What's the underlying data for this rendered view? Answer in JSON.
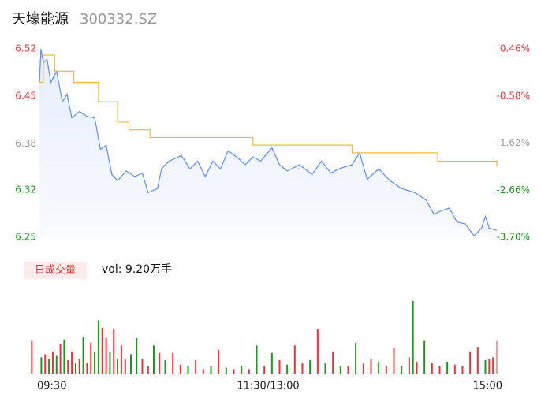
{
  "header": {
    "name": "天壕能源",
    "code": "300332.SZ"
  },
  "chart_data": {
    "type": "intraday",
    "xlim": [
      0,
      240
    ],
    "xticks": [
      {
        "value": 0,
        "label": "09:30"
      },
      {
        "value": 120,
        "label": "11:30/13:00"
      },
      {
        "value": 240,
        "label": "15:00"
      }
    ],
    "ylim": [
      6.25,
      6.52
    ],
    "yticks": [
      {
        "value": 6.25,
        "label": "6.25"
      },
      {
        "value": 6.318,
        "label": "6.32"
      },
      {
        "value": 6.384,
        "label": "6.38"
      },
      {
        "value": 6.452,
        "label": "6.45"
      },
      {
        "value": 6.52,
        "label": "6.52"
      }
    ],
    "y2lim": [
      -3.7,
      0.46
    ],
    "y2ticks": [
      {
        "value": -3.7,
        "label": "-3.70%"
      },
      {
        "value": -2.66,
        "label": "-2.66%"
      },
      {
        "value": -1.62,
        "label": "-1.62%"
      },
      {
        "value": -0.58,
        "label": "-0.58%"
      },
      {
        "value": 0.46,
        "label": "0.46%"
      }
    ],
    "up_color": "#e8323c",
    "down_color": "#1a9a1a",
    "flat_color": "#999999",
    "series": [
      {
        "name": "price",
        "color": "#5b8ff9",
        "x": [
          0,
          0.8,
          2,
          4,
          6,
          9,
          12,
          14.5,
          17,
          21,
          25,
          29,
          32,
          35,
          38,
          41,
          45.5,
          50,
          54,
          57,
          62,
          64,
          68,
          74.5,
          79,
          83,
          87,
          91,
          95,
          99,
          103.5,
          108,
          112,
          116,
          122,
          126,
          130,
          136.5,
          143,
          148,
          153,
          157,
          164,
          168,
          172,
          178,
          184,
          190,
          197,
          203,
          207,
          211,
          215,
          219,
          223.5,
          228,
          232,
          234,
          236,
          240
        ],
        "values": [
          6.472,
          6.52,
          6.5,
          6.505,
          6.472,
          6.488,
          6.444,
          6.455,
          6.421,
          6.43,
          6.423,
          6.421,
          6.376,
          6.382,
          6.34,
          6.331,
          6.345,
          6.337,
          6.342,
          6.314,
          6.32,
          6.348,
          6.359,
          6.367,
          6.348,
          6.359,
          6.337,
          6.359,
          6.348,
          6.374,
          6.365,
          6.354,
          6.365,
          6.359,
          6.378,
          6.354,
          6.345,
          6.354,
          6.34,
          6.359,
          6.342,
          6.348,
          6.354,
          6.371,
          6.333,
          6.348,
          6.331,
          6.32,
          6.314,
          6.303,
          6.283,
          6.288,
          6.292,
          6.272,
          6.269,
          6.252,
          6.263,
          6.28,
          6.263,
          6.26
        ]
      },
      {
        "name": "average",
        "color": "#f5b731",
        "x": [
          0,
          2,
          8,
          18,
          31,
          41,
          47,
          58,
          112,
          164,
          209,
          240
        ],
        "values": [
          6.472,
          6.511,
          6.488,
          6.472,
          6.444,
          6.415,
          6.404,
          6.393,
          6.382,
          6.371,
          6.359,
          6.351
        ]
      }
    ],
    "volume": {
      "legend": "日成交量",
      "label": "vol: 9.20万手",
      "ylim": [
        0,
        100
      ],
      "bars": [
        {
          "x": -4,
          "value": 44,
          "color": "#e8323c"
        },
        {
          "x": 1,
          "value": 22,
          "color": "#1a9a1a"
        },
        {
          "x": 3,
          "value": 26,
          "color": "#e8323c"
        },
        {
          "x": 5,
          "value": 20,
          "color": "#1a9a1a"
        },
        {
          "x": 7,
          "value": 30,
          "color": "#e8323c"
        },
        {
          "x": 9,
          "value": 24,
          "color": "#1a9a1a"
        },
        {
          "x": 11,
          "value": 40,
          "color": "#e8323c"
        },
        {
          "x": 13,
          "value": 46,
          "color": "#1a9a1a"
        },
        {
          "x": 15,
          "value": 18,
          "color": "#e8323c"
        },
        {
          "x": 17,
          "value": 30,
          "color": "#e8323c"
        },
        {
          "x": 19,
          "value": 14,
          "color": "#1a9a1a"
        },
        {
          "x": 21,
          "value": 20,
          "color": "#e8323c"
        },
        {
          "x": 23,
          "value": 50,
          "color": "#1a9a1a"
        },
        {
          "x": 25,
          "value": 14,
          "color": "#e8323c"
        },
        {
          "x": 27,
          "value": 42,
          "color": "#e8323c"
        },
        {
          "x": 29,
          "value": 30,
          "color": "#1a9a1a"
        },
        {
          "x": 31,
          "value": 72,
          "color": "#1a9a1a"
        },
        {
          "x": 33,
          "value": 62,
          "color": "#e8323c"
        },
        {
          "x": 35,
          "value": 48,
          "color": "#e8323c"
        },
        {
          "x": 37,
          "value": 30,
          "color": "#1a9a1a"
        },
        {
          "x": 39,
          "value": 60,
          "color": "#e8323c"
        },
        {
          "x": 41,
          "value": 20,
          "color": "#1a9a1a"
        },
        {
          "x": 43,
          "value": 38,
          "color": "#e8323c"
        },
        {
          "x": 45,
          "value": 20,
          "color": "#e8323c"
        },
        {
          "x": 48,
          "value": 26,
          "color": "#1a9a1a"
        },
        {
          "x": 51,
          "value": 48,
          "color": "#1a9a1a"
        },
        {
          "x": 54,
          "value": 20,
          "color": "#e8323c"
        },
        {
          "x": 57,
          "value": 10,
          "color": "#e8323c"
        },
        {
          "x": 60,
          "value": 38,
          "color": "#1a9a1a"
        },
        {
          "x": 63,
          "value": 28,
          "color": "#e8323c"
        },
        {
          "x": 66,
          "value": 18,
          "color": "#1a9a1a"
        },
        {
          "x": 70,
          "value": 28,
          "color": "#e8323c"
        },
        {
          "x": 74,
          "value": 12,
          "color": "#e8323c"
        },
        {
          "x": 78,
          "value": 10,
          "color": "#1a9a1a"
        },
        {
          "x": 82,
          "value": 18,
          "color": "#e8323c"
        },
        {
          "x": 86,
          "value": 6,
          "color": "#e8323c"
        },
        {
          "x": 90,
          "value": 10,
          "color": "#1a9a1a"
        },
        {
          "x": 94,
          "value": 32,
          "color": "#e8323c"
        },
        {
          "x": 98,
          "value": 8,
          "color": "#1a9a1a"
        },
        {
          "x": 102,
          "value": 6,
          "color": "#e8323c"
        },
        {
          "x": 106,
          "value": 10,
          "color": "#1a9a1a"
        },
        {
          "x": 110,
          "value": 6,
          "color": "#e8323c"
        },
        {
          "x": 114,
          "value": 38,
          "color": "#1a9a1a"
        },
        {
          "x": 118,
          "value": 10,
          "color": "#e8323c"
        },
        {
          "x": 122,
          "value": 28,
          "color": "#1a9a1a"
        },
        {
          "x": 126,
          "value": 18,
          "color": "#e8323c"
        },
        {
          "x": 130,
          "value": 12,
          "color": "#1a9a1a"
        },
        {
          "x": 134,
          "value": 38,
          "color": "#e8323c"
        },
        {
          "x": 138,
          "value": 14,
          "color": "#e8323c"
        },
        {
          "x": 142,
          "value": 18,
          "color": "#1a9a1a"
        },
        {
          "x": 146,
          "value": 60,
          "color": "#e8323c"
        },
        {
          "x": 150,
          "value": 14,
          "color": "#1a9a1a"
        },
        {
          "x": 154,
          "value": 30,
          "color": "#e8323c"
        },
        {
          "x": 158,
          "value": 10,
          "color": "#1a9a1a"
        },
        {
          "x": 162,
          "value": 10,
          "color": "#e8323c"
        },
        {
          "x": 166,
          "value": 42,
          "color": "#1a9a1a"
        },
        {
          "x": 170,
          "value": 14,
          "color": "#e8323c"
        },
        {
          "x": 174,
          "value": 20,
          "color": "#e8323c"
        },
        {
          "x": 178,
          "value": 16,
          "color": "#1a9a1a"
        },
        {
          "x": 182,
          "value": 10,
          "color": "#e8323c"
        },
        {
          "x": 186,
          "value": 34,
          "color": "#e8323c"
        },
        {
          "x": 190,
          "value": 10,
          "color": "#1a9a1a"
        },
        {
          "x": 194,
          "value": 22,
          "color": "#e8323c"
        },
        {
          "x": 196,
          "value": 98,
          "color": "#1a9a1a"
        },
        {
          "x": 198,
          "value": 16,
          "color": "#e8323c"
        },
        {
          "x": 202,
          "value": 44,
          "color": "#1a9a1a"
        },
        {
          "x": 206,
          "value": 14,
          "color": "#e8323c"
        },
        {
          "x": 210,
          "value": 10,
          "color": "#e8323c"
        },
        {
          "x": 214,
          "value": 16,
          "color": "#1a9a1a"
        },
        {
          "x": 218,
          "value": 12,
          "color": "#e8323c"
        },
        {
          "x": 222,
          "value": 10,
          "color": "#e8323c"
        },
        {
          "x": 226,
          "value": 30,
          "color": "#e8323c"
        },
        {
          "x": 230,
          "value": 36,
          "color": "#e8323c"
        },
        {
          "x": 234,
          "value": 18,
          "color": "#1a9a1a"
        },
        {
          "x": 236,
          "value": 20,
          "color": "#e8323c"
        },
        {
          "x": 238,
          "value": 22,
          "color": "#e8323c"
        },
        {
          "x": 240,
          "value": 44,
          "color": "#f0a0a0"
        }
      ]
    }
  }
}
